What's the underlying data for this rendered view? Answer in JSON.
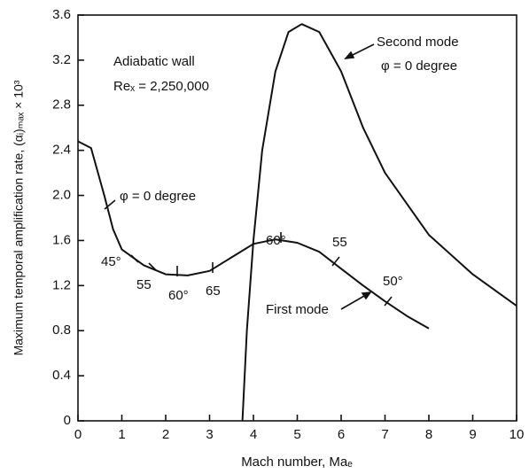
{
  "chart_data": {
    "type": "line",
    "xlabel": "Mach number, Maₑ",
    "ylabel": "Maximum temporal amplification rate, (αᵢ)ₘₐₓ × 10³",
    "xlim": [
      0,
      10
    ],
    "xticks": [
      0,
      1,
      2,
      3,
      4,
      5,
      6,
      7,
      8,
      9,
      10
    ],
    "ylim": [
      0,
      3.6
    ],
    "yticks": [
      0,
      0.4,
      0.8,
      1.2,
      1.6,
      {
        "value": 2,
        "label": "2.0"
      },
      2.4,
      2.8,
      3.2,
      3.6
    ],
    "annotations": [
      "Adiabatic wall",
      "Reₓ = 2,250,000",
      "φ = 0 degree",
      "φ = 0 degree",
      "45°",
      "55",
      "60°",
      "65",
      "60°",
      "55",
      "50°"
    ],
    "series": [
      {
        "name": "First mode",
        "color": "#111111",
        "x": [
          0,
          0.3,
          0.6,
          0.8,
          1.0,
          1.5,
          2.0,
          2.5,
          3.0,
          3.5,
          4.0,
          4.5,
          5.0,
          5.5,
          6.0,
          6.5,
          7.0,
          7.5,
          8.0
        ],
        "values": [
          2.48,
          2.42,
          2.0,
          1.7,
          1.52,
          1.38,
          1.3,
          1.29,
          1.33,
          1.45,
          1.57,
          1.61,
          1.58,
          1.5,
          1.35,
          1.2,
          1.06,
          0.93,
          0.82
        ]
      },
      {
        "name": "Second mode",
        "color": "#111111",
        "x": [
          3.75,
          3.85,
          4.0,
          4.2,
          4.5,
          4.8,
          5.1,
          5.5,
          6.0,
          6.5,
          7.0,
          8.0,
          9.0,
          10.0
        ],
        "values": [
          0,
          0.8,
          1.6,
          2.4,
          3.1,
          3.45,
          3.52,
          3.45,
          3.1,
          2.6,
          2.2,
          1.65,
          1.3,
          1.02
        ]
      }
    ]
  }
}
